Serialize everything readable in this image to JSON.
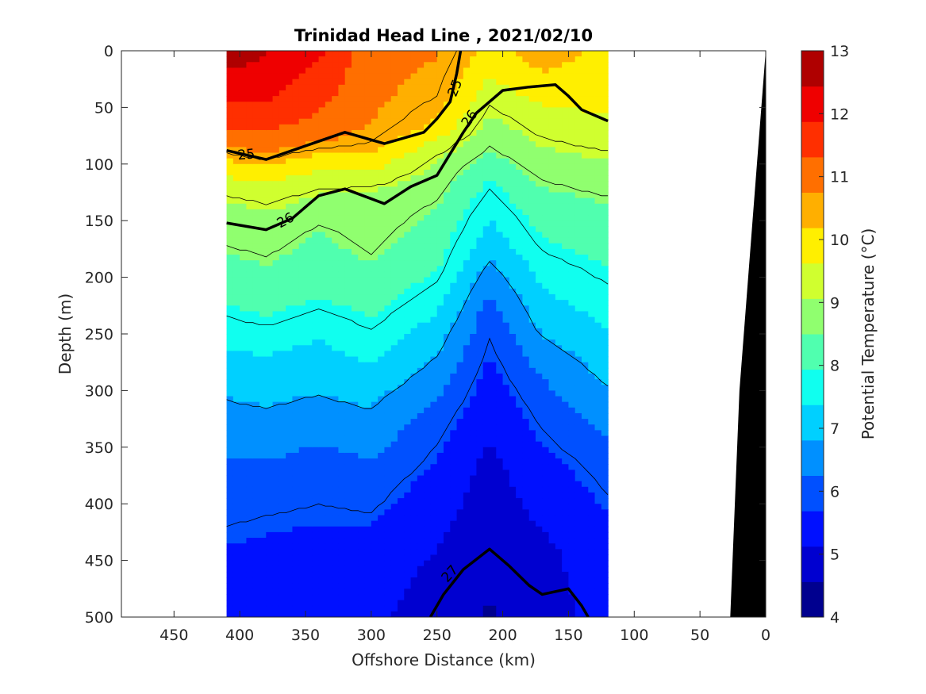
{
  "chart_data": {
    "type": "heatmap",
    "title": "Trinidad Head Line , 2021/02/10",
    "xlabel": "Offshore Distance (km)",
    "ylabel": "Depth (m)",
    "colorbar_label": "Potential Temperature (°C)",
    "xlim": [
      490,
      0
    ],
    "ylim": [
      500,
      0
    ],
    "x_reversed": true,
    "y_reversed": true,
    "x_ticks": [
      450,
      400,
      350,
      300,
      250,
      200,
      150,
      100,
      50,
      0
    ],
    "y_ticks": [
      0,
      50,
      100,
      150,
      200,
      250,
      300,
      350,
      400,
      450,
      500
    ],
    "colorbar_ticks": [
      4,
      5,
      6,
      7,
      8,
      9,
      10,
      11,
      12,
      13
    ],
    "colorbar_range": [
      4,
      13
    ],
    "colormap": [
      "#00008F",
      "#0000D0",
      "#0010FF",
      "#0050FF",
      "#0090FF",
      "#00D0FF",
      "#10FFEF",
      "#50FFAF",
      "#90FF6F",
      "#D0FF2F",
      "#FFEF00",
      "#FFAF00",
      "#FF6F00",
      "#FF2F00",
      "#EF0000",
      "#AF0000"
    ],
    "section_x_range": [
      410,
      120
    ],
    "temperature_columns": [
      {
        "x": 410,
        "profile": [
          [
            0,
            12.8
          ],
          [
            40,
            12.0
          ],
          [
            80,
            11.0
          ],
          [
            100,
            10.0
          ],
          [
            115,
            9.5
          ],
          [
            135,
            9.0
          ],
          [
            180,
            8.5
          ],
          [
            220,
            8.0
          ],
          [
            255,
            7.5
          ],
          [
            290,
            7.0
          ],
          [
            335,
            6.5
          ],
          [
            385,
            6.0
          ],
          [
            470,
            5.5
          ],
          [
            500,
            5.3
          ]
        ]
      },
      {
        "x": 380,
        "profile": [
          [
            0,
            12.5
          ],
          [
            50,
            11.8
          ],
          [
            85,
            11.0
          ],
          [
            105,
            10.0
          ],
          [
            120,
            9.5
          ],
          [
            145,
            9.0
          ],
          [
            190,
            8.5
          ],
          [
            230,
            8.0
          ],
          [
            260,
            7.5
          ],
          [
            295,
            7.0
          ],
          [
            345,
            6.5
          ],
          [
            380,
            6.0
          ],
          [
            455,
            5.5
          ],
          [
            500,
            5.3
          ]
        ]
      },
      {
        "x": 340,
        "profile": [
          [
            0,
            12.0
          ],
          [
            40,
            11.5
          ],
          [
            75,
            11.0
          ],
          [
            95,
            10.0
          ],
          [
            110,
            9.5
          ],
          [
            130,
            9.0
          ],
          [
            160,
            8.5
          ],
          [
            215,
            8.0
          ],
          [
            245,
            7.5
          ],
          [
            285,
            7.0
          ],
          [
            330,
            6.5
          ],
          [
            365,
            6.0
          ],
          [
            450,
            5.5
          ],
          [
            500,
            5.3
          ]
        ]
      },
      {
        "x": 300,
        "profile": [
          [
            0,
            11.0
          ],
          [
            60,
            10.8
          ],
          [
            80,
            10.5
          ],
          [
            95,
            10.0
          ],
          [
            110,
            9.5
          ],
          [
            125,
            9.0
          ],
          [
            150,
            8.8
          ],
          [
            180,
            8.6
          ],
          [
            230,
            8.0
          ],
          [
            270,
            7.5
          ],
          [
            300,
            7.0
          ],
          [
            340,
            6.5
          ],
          [
            385,
            6.0
          ],
          [
            440,
            5.5
          ],
          [
            500,
            5.2
          ]
        ]
      },
      {
        "x": 250,
        "profile": [
          [
            0,
            10.8
          ],
          [
            40,
            10.5
          ],
          [
            70,
            10.0
          ],
          [
            80,
            9.5
          ],
          [
            100,
            9.0
          ],
          [
            140,
            8.5
          ],
          [
            190,
            8.0
          ],
          [
            225,
            7.5
          ],
          [
            255,
            7.0
          ],
          [
            290,
            6.5
          ],
          [
            325,
            6.0
          ],
          [
            380,
            5.5
          ],
          [
            460,
            5.0
          ],
          [
            500,
            4.9
          ]
        ]
      },
      {
        "x": 210,
        "profile": [
          [
            0,
            10.0
          ],
          [
            30,
            9.5
          ],
          [
            60,
            9.0
          ],
          [
            90,
            8.5
          ],
          [
            110,
            8.0
          ],
          [
            140,
            7.5
          ],
          [
            175,
            7.0
          ],
          [
            200,
            6.5
          ],
          [
            230,
            6.0
          ],
          [
            290,
            5.5
          ],
          [
            360,
            5.0
          ],
          [
            420,
            4.8
          ],
          [
            500,
            4.5
          ]
        ]
      },
      {
        "x": 170,
        "profile": [
          [
            0,
            10.5
          ],
          [
            30,
            10.0
          ],
          [
            55,
            9.5
          ],
          [
            90,
            9.0
          ],
          [
            120,
            8.5
          ],
          [
            160,
            8.0
          ],
          [
            200,
            7.5
          ],
          [
            240,
            7.0
          ],
          [
            270,
            6.5
          ],
          [
            310,
            6.0
          ],
          [
            370,
            5.5
          ],
          [
            440,
            5.0
          ],
          [
            500,
            4.9
          ]
        ]
      },
      {
        "x": 120,
        "profile": [
          [
            0,
            10.0
          ],
          [
            40,
            9.8
          ],
          [
            70,
            9.5
          ],
          [
            100,
            9.0
          ],
          [
            135,
            8.5
          ],
          [
            185,
            8.0
          ],
          [
            235,
            7.5
          ],
          [
            280,
            7.0
          ],
          [
            320,
            6.5
          ],
          [
            360,
            6.0
          ],
          [
            440,
            5.5
          ],
          [
            500,
            5.3
          ]
        ]
      }
    ],
    "density_contours": [
      {
        "level": 25,
        "points": [
          [
            410,
            88
          ],
          [
            380,
            96
          ],
          [
            340,
            80
          ],
          [
            320,
            72
          ],
          [
            290,
            82
          ],
          [
            260,
            72
          ],
          [
            250,
            60
          ],
          [
            240,
            45
          ],
          [
            235,
            20
          ],
          [
            232,
            0
          ]
        ]
      },
      {
        "level": 26,
        "points": [
          [
            410,
            152
          ],
          [
            380,
            158
          ],
          [
            360,
            148
          ],
          [
            340,
            128
          ],
          [
            320,
            122
          ],
          [
            290,
            135
          ],
          [
            270,
            120
          ],
          [
            250,
            110
          ],
          [
            230,
            72
          ],
          [
            220,
            55
          ],
          [
            200,
            35
          ],
          [
            180,
            32
          ],
          [
            160,
            30
          ],
          [
            150,
            40
          ],
          [
            140,
            52
          ],
          [
            120,
            62
          ]
        ]
      },
      {
        "level": 27,
        "points": [
          [
            255,
            500
          ],
          [
            245,
            480
          ],
          [
            230,
            458
          ],
          [
            210,
            440
          ],
          [
            195,
            455
          ],
          [
            180,
            472
          ],
          [
            170,
            480
          ],
          [
            150,
            475
          ],
          [
            140,
            490
          ],
          [
            135,
            500
          ]
        ]
      }
    ],
    "annotations": [
      "25",
      "25",
      "26",
      "26",
      "27"
    ],
    "bathymetry_color": "#000000",
    "bathymetry": [
      [
        27,
        500
      ],
      [
        20,
        300
      ],
      [
        10,
        150
      ],
      [
        0,
        0
      ]
    ]
  }
}
